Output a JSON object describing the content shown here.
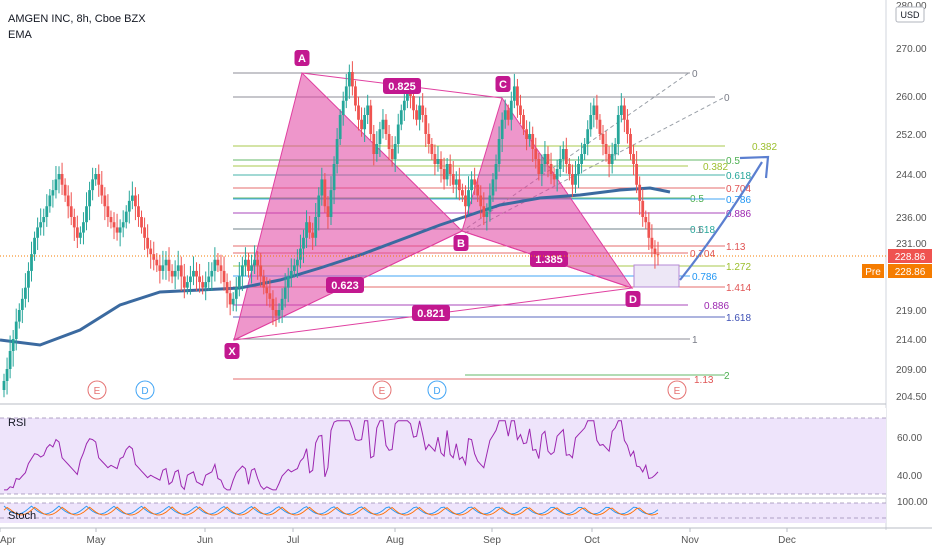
{
  "header": {
    "title": "AMGEN INC, 8h, Cboe BZX",
    "indicator": "EMA"
  },
  "price_axis": {
    "currency": "USD",
    "ticks": [
      "280.00",
      "270.00",
      "260.00",
      "252.00",
      "244.00",
      "236.00",
      "231.00",
      "219.00",
      "214.00",
      "209.00",
      "204.50"
    ],
    "last_price": "228.86",
    "pre_label": "Pre",
    "pre_price": "228.86"
  },
  "time_axis": {
    "labels": [
      "Apr",
      "May",
      "Jun",
      "Jul",
      "Aug",
      "Sep",
      "Oct",
      "Nov",
      "Dec"
    ]
  },
  "harmonic": {
    "points": [
      "X",
      "A",
      "B",
      "C",
      "D"
    ],
    "ratios": [
      "0.825",
      "1.385",
      "0.623",
      "0.821"
    ]
  },
  "fib_levels": [
    {
      "label": "0",
      "color": "#787b86"
    },
    {
      "label": "0",
      "color": "#787b86"
    },
    {
      "label": "0.382",
      "color": "#9cbf2d"
    },
    {
      "label": "0.5",
      "color": "#4caf50"
    },
    {
      "label": "0.382",
      "color": "#9cbf2d"
    },
    {
      "label": "0.618",
      "color": "#26a69a"
    },
    {
      "label": "0.704",
      "color": "#e05555"
    },
    {
      "label": "0.5",
      "color": "#4caf50"
    },
    {
      "label": "0.786",
      "color": "#2196f3"
    },
    {
      "label": "0.886",
      "color": "#9c27b0"
    },
    {
      "label": "0.618",
      "color": "#26a69a"
    },
    {
      "label": "1",
      "color": "#787b86"
    },
    {
      "label": "1.13",
      "color": "#e05555"
    },
    {
      "label": "0.704",
      "color": "#e05555"
    },
    {
      "label": "1.272",
      "color": "#9cbf2d"
    },
    {
      "label": "0.786",
      "color": "#2196f3"
    },
    {
      "label": "1.414",
      "color": "#e05555"
    },
    {
      "label": "0.886",
      "color": "#9c27b0"
    },
    {
      "label": "1.618",
      "color": "#3f51b5"
    },
    {
      "label": "1",
      "color": "#787b86"
    },
    {
      "label": "2",
      "color": "#4caf50"
    },
    {
      "label": "1.13",
      "color": "#e05555"
    }
  ],
  "events": [
    {
      "label": "E",
      "kind": "earnings"
    },
    {
      "label": "D",
      "kind": "dividend"
    },
    {
      "label": "E",
      "kind": "earnings"
    },
    {
      "label": "D",
      "kind": "dividend"
    },
    {
      "label": "E",
      "kind": "earnings"
    }
  ],
  "rsi": {
    "name": "RSI",
    "ticks": [
      "60.00",
      "40.00"
    ],
    "color": "#9c27b0"
  },
  "stoch": {
    "name": "Stoch",
    "ticks": [
      "100.00"
    ]
  },
  "colors": {
    "up": "#26a69a",
    "down": "#ef5350",
    "pattern": "#e040a0",
    "ema": "#3b6aa0",
    "forecast": "#5b7fd0"
  },
  "chart_data": {
    "type": "candlestick",
    "title": "AMGEN INC, 8h, Cboe BZX",
    "ylim": [
      203,
      282
    ],
    "closes": [
      207,
      209,
      212,
      214,
      217,
      219,
      221,
      223,
      226,
      229,
      232,
      234,
      235,
      236,
      238,
      240,
      241,
      243,
      244,
      242,
      240,
      238,
      236,
      234,
      232,
      233,
      235,
      238,
      241,
      243,
      244,
      242,
      240,
      238,
      236,
      235,
      234,
      233,
      234,
      235,
      237,
      239,
      240,
      238,
      236,
      234,
      232,
      230,
      229,
      228,
      227,
      226,
      227,
      228,
      226,
      225,
      226,
      227,
      225,
      223,
      224,
      225,
      226,
      225,
      224,
      223,
      224,
      225,
      226,
      228,
      227,
      226,
      224,
      222,
      220,
      221,
      223,
      225,
      227,
      228,
      226,
      227,
      228,
      227,
      225,
      223,
      222,
      221,
      219,
      218,
      219,
      221,
      223,
      225,
      226,
      227,
      228,
      230,
      232,
      235,
      233,
      232,
      236,
      240,
      243,
      238,
      236,
      241,
      246,
      251,
      256,
      259,
      262,
      265,
      262,
      258,
      255,
      253,
      256,
      258,
      252,
      248,
      250,
      253,
      255,
      252,
      249,
      247,
      250,
      254,
      257,
      259,
      261,
      260,
      257,
      255,
      258,
      256,
      252,
      250,
      248,
      246,
      247,
      245,
      243,
      246,
      244,
      242,
      243,
      241,
      240,
      238,
      241,
      243,
      242,
      240,
      238,
      236,
      237,
      240,
      243,
      246,
      251,
      255,
      257,
      255,
      259,
      262,
      258,
      256,
      253,
      251,
      252,
      249,
      247,
      244,
      246,
      248,
      246,
      244,
      243,
      245,
      247,
      249,
      246,
      244,
      242,
      244,
      246,
      248,
      250,
      253,
      256,
      258,
      255,
      252,
      250,
      248,
      246,
      248,
      250,
      256,
      258,
      255,
      252,
      248,
      246,
      242,
      239,
      236,
      235,
      232,
      230,
      229,
      228.86
    ],
    "ema_note": "EMA overlay shown",
    "rsi_range": [
      25,
      80
    ]
  }
}
